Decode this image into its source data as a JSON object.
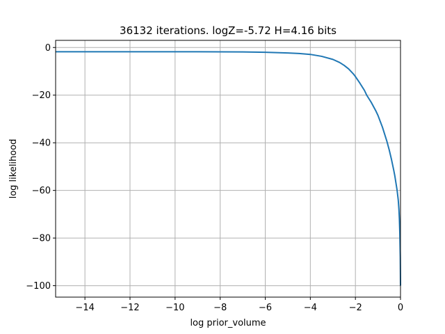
{
  "chart_data": {
    "type": "line",
    "title": "36132 iterations. logZ=-5.72 H=4.16 bits",
    "xlabel": "log prior_volume",
    "ylabel": "log likelihood",
    "xlim": [
      -15.3,
      0.0
    ],
    "ylim": [
      -104.8,
      3.0
    ],
    "xticks": [
      -14,
      -12,
      -10,
      -8,
      -6,
      -4,
      -2,
      0
    ],
    "yticks": [
      0,
      -20,
      -40,
      -60,
      -80,
      -100
    ],
    "grid": true,
    "series_color": "#1f77b4",
    "series": [
      {
        "x": [
          -15.3,
          -13.0,
          -11.0,
          -9.0,
          -7.0,
          -6.0,
          -5.0,
          -4.5,
          -4.0,
          -3.5,
          -3.0,
          -2.7,
          -2.5,
          -2.3,
          -2.1,
          -2.0,
          -1.8,
          -1.6,
          -1.5,
          -1.3,
          -1.1,
          -1.0,
          -0.9,
          -0.8,
          -0.7,
          -0.6,
          -0.5,
          -0.4,
          -0.3,
          -0.25,
          -0.2,
          -0.15,
          -0.1,
          -0.07,
          -0.05,
          -0.03,
          -0.01,
          0.0
        ],
        "y": [
          -1.8,
          -1.8,
          -1.8,
          -1.8,
          -1.85,
          -2.0,
          -2.3,
          -2.5,
          -2.9,
          -3.7,
          -5.0,
          -6.3,
          -7.5,
          -9.0,
          -11.0,
          -12.2,
          -15.0,
          -18.0,
          -20.0,
          -23.0,
          -26.5,
          -28.5,
          -31.0,
          -33.5,
          -36.5,
          -39.5,
          -43.0,
          -47.0,
          -51.5,
          -54.0,
          -57.0,
          -60.0,
          -64.0,
          -68.0,
          -72.0,
          -78.0,
          -88.0,
          -100.0
        ]
      }
    ]
  }
}
